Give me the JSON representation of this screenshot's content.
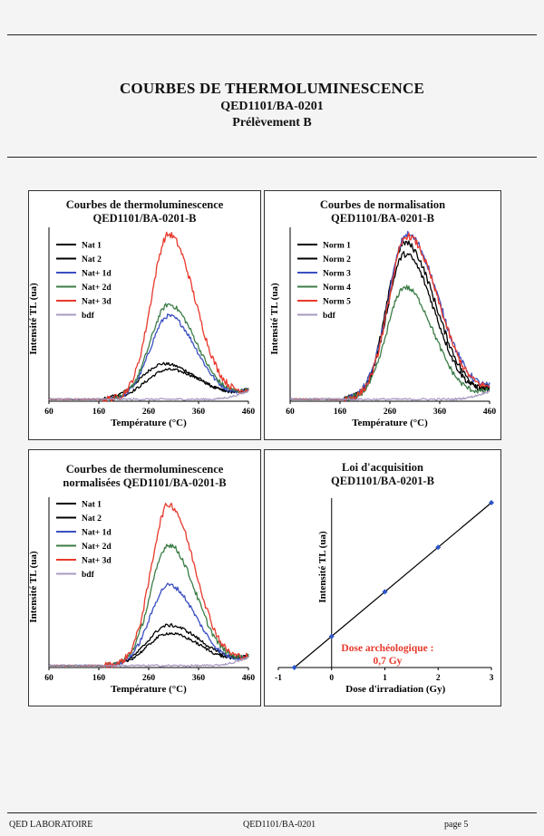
{
  "header": {
    "title": "COURBES DE THERMOLUMINESCENCE",
    "code": "QED1101/BA-0201",
    "sample": "Prélèvement B"
  },
  "footer": {
    "left": "QED LABORATOIRE",
    "center": "QED1101/BA-0201",
    "right": "page 5"
  },
  "chart_data": [
    {
      "type": "line",
      "title": "Courbes de thermoluminescence QED1101/BA-0201-B",
      "title_lines": [
        "Courbes de thermoluminescence",
        "QED1101/BA-0201-B"
      ],
      "xlabel": "Température (°C)",
      "ylabel": "Intensité TL (ua)",
      "xlim": [
        60,
        460
      ],
      "xticks": [
        60,
        160,
        260,
        360,
        460
      ],
      "legend": "top-left",
      "series": [
        {
          "name": "Nat 1",
          "color": "#000000",
          "peak": 290,
          "amp": 0.215,
          "sl": 45,
          "sr": 68
        },
        {
          "name": "Nat 2",
          "color": "#000000",
          "peak": 300,
          "amp": 0.18,
          "sl": 45,
          "sr": 68
        },
        {
          "name": "Nat+ 1d",
          "color": "#3b4fc0",
          "peak": 300,
          "amp": 0.505,
          "sl": 37,
          "sr": 55
        },
        {
          "name": "Nat+ 2d",
          "color": "#3c7d47",
          "peak": 300,
          "amp": 0.575,
          "sl": 37,
          "sr": 55
        },
        {
          "name": "Nat+ 3d",
          "color": "#e8392c",
          "peak": 300,
          "amp": 1.0,
          "sl": 35,
          "sr": 53
        },
        {
          "name": "bdf",
          "color": "#a89ac2",
          "peak": 400,
          "amp": 0.0,
          "sl": 40,
          "sr": 60
        }
      ]
    },
    {
      "type": "line",
      "title": "Courbes de normalisation QED1101/BA-0201-B",
      "title_lines": [
        "Courbes de normalisation",
        "QED1101/BA-0201-B"
      ],
      "xlabel": "Température (°C)",
      "ylabel": "Intensité TL (ua)",
      "xlim": [
        60,
        460
      ],
      "xticks": [
        60,
        160,
        260,
        360,
        460
      ],
      "legend": "top-left",
      "series": [
        {
          "name": "Norm 1",
          "color": "#000000",
          "peak": 290,
          "amp": 0.95,
          "sl": 36,
          "sr": 62
        },
        {
          "name": "Norm 2",
          "color": "#000000",
          "peak": 290,
          "amp": 0.88,
          "sl": 36,
          "sr": 60
        },
        {
          "name": "Norm 3",
          "color": "#3b4fc0",
          "peak": 295,
          "amp": 1.0,
          "sl": 38,
          "sr": 63
        },
        {
          "name": "Norm 4",
          "color": "#3c7d47",
          "peak": 290,
          "amp": 0.68,
          "sl": 36,
          "sr": 57
        },
        {
          "name": "Norm 5",
          "color": "#e8392c",
          "peak": 295,
          "amp": 0.99,
          "sl": 37,
          "sr": 62
        },
        {
          "name": "bdf",
          "color": "#a89ac2",
          "peak": 400,
          "amp": 0.0,
          "sl": 40,
          "sr": 60
        }
      ]
    },
    {
      "type": "line",
      "title": "Courbes de thermoluminescence normalisées QED1101/BA-0201-B",
      "title_lines": [
        "Courbes de thermoluminescence",
        "normalisées QED1101/BA-0201-B"
      ],
      "xlabel": "Température (°C)",
      "ylabel": "Intensité TL (ua)",
      "xlim": [
        60,
        460
      ],
      "xticks": [
        60,
        160,
        260,
        360,
        460
      ],
      "legend": "top-left",
      "series": [
        {
          "name": "Nat 1",
          "color": "#000000",
          "peak": 300,
          "amp": 0.25,
          "sl": 42,
          "sr": 66
        },
        {
          "name": "Nat 2",
          "color": "#000000",
          "peak": 300,
          "amp": 0.2,
          "sl": 42,
          "sr": 66
        },
        {
          "name": "Nat+ 1d",
          "color": "#3b4fc0",
          "peak": 300,
          "amp": 0.5,
          "sl": 37,
          "sr": 55
        },
        {
          "name": "Nat+ 2d",
          "color": "#3c7d47",
          "peak": 300,
          "amp": 0.75,
          "sl": 36,
          "sr": 54
        },
        {
          "name": "Nat+ 3d",
          "color": "#e8392c",
          "peak": 300,
          "amp": 1.0,
          "sl": 35,
          "sr": 53
        },
        {
          "name": "bdf",
          "color": "#a89ac2",
          "peak": 400,
          "amp": 0.0,
          "sl": 40,
          "sr": 60
        }
      ]
    },
    {
      "type": "scatter",
      "title": "Loi d'acquisition QED1101/BA-0201-B",
      "title_lines": [
        "Loi d'acquisition",
        "QED1101/BA-0201-B"
      ],
      "xlabel": "Dose d'irradiation (Gy)",
      "ylabel": "Intensité TL (ua)",
      "xlim": [
        -1,
        3
      ],
      "ylim": [
        0,
        3.7
      ],
      "xticks": [
        -1,
        0,
        1,
        2,
        3
      ],
      "x": [
        -0.7,
        0,
        1,
        2,
        3
      ],
      "y": [
        0,
        0.7,
        1.7,
        2.7,
        3.7
      ],
      "fit": {
        "x": [
          -0.7,
          3
        ],
        "y": [
          0,
          3.7
        ]
      },
      "annotation": [
        "Dose archéologique :",
        "0,7 Gy"
      ],
      "annotation_color": "#e8392c"
    }
  ]
}
